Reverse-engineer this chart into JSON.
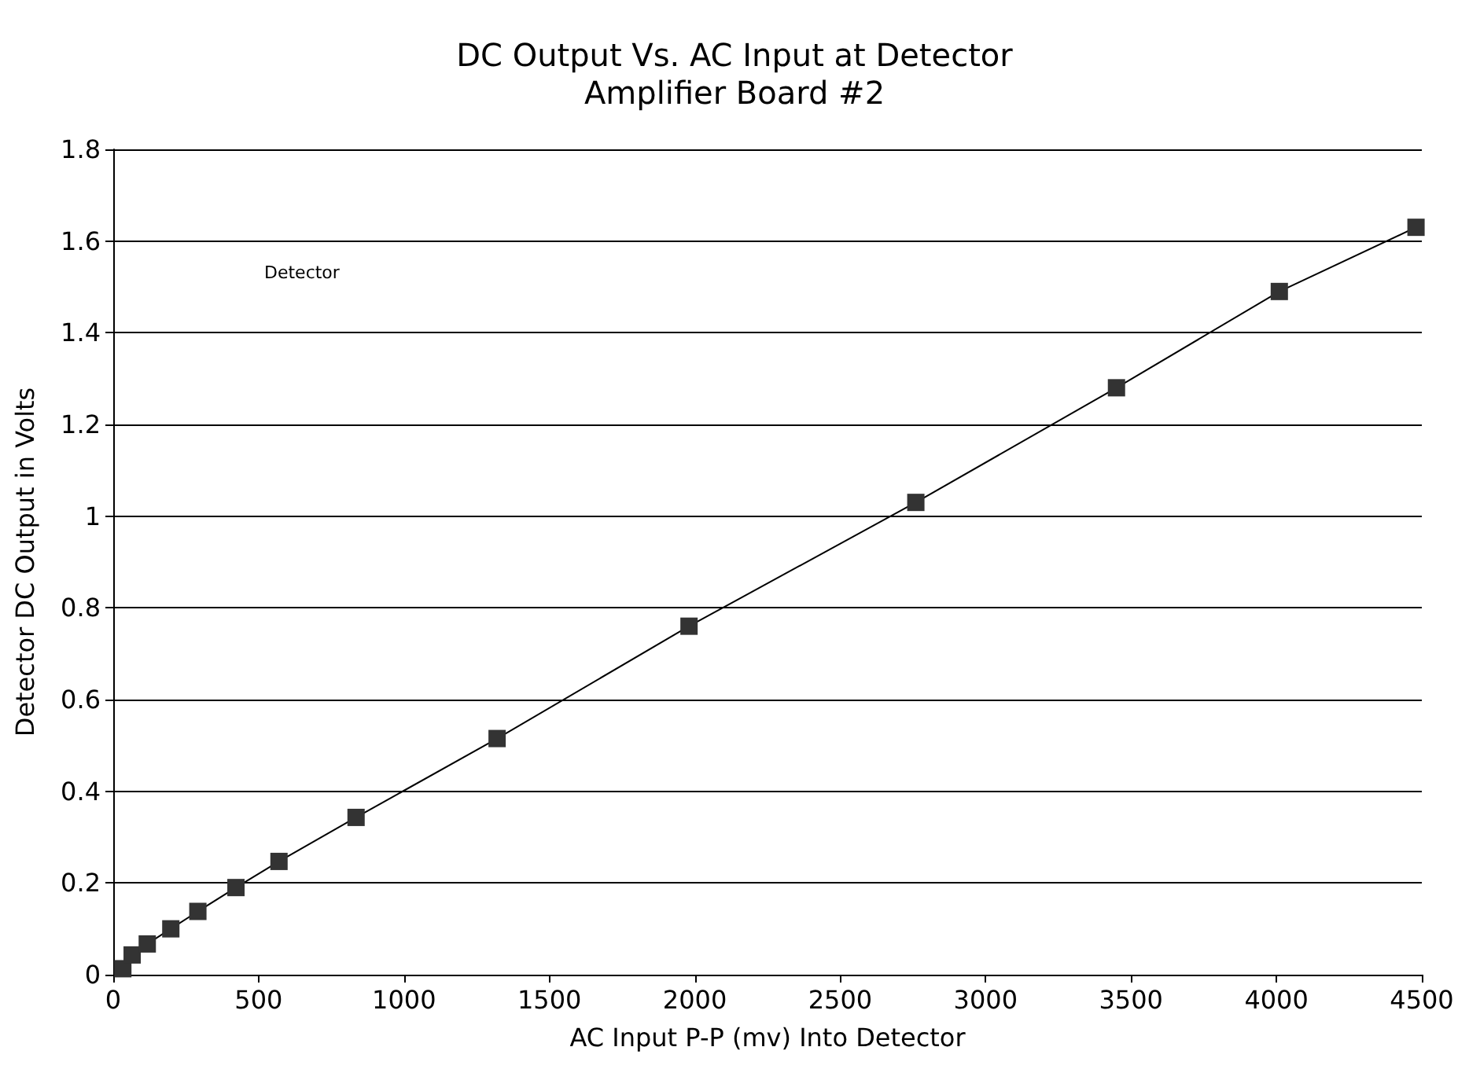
{
  "chart_data": {
    "type": "line",
    "title": "DC Output Vs. AC Input at Detector\nAmplifier Board #2",
    "xlabel": "AC Input P-P (mv) Into Detector",
    "ylabel": "Detector DC Output in Volts",
    "annotations": [
      "Detector"
    ],
    "x": [
      33,
      65,
      117,
      198,
      291,
      422,
      570,
      835,
      1320,
      1980,
      2760,
      3450,
      4010,
      4480
    ],
    "series": [
      {
        "color": "#333333",
        "values": [
          0.013,
          0.043,
          0.067,
          0.1,
          0.138,
          0.19,
          0.247,
          0.343,
          0.515,
          0.76,
          1.03,
          1.28,
          1.49,
          1.63
        ]
      }
    ],
    "xlim": [
      0,
      4500
    ],
    "xticks": [
      0,
      500,
      1000,
      1500,
      2000,
      2500,
      3000,
      3500,
      4000,
      4500
    ],
    "ylim": [
      0,
      1.8
    ],
    "yticks": [
      0,
      0.2,
      0.4,
      0.6,
      0.8,
      1,
      1.2,
      1.4,
      1.6,
      1.8
    ],
    "grid": "y",
    "marker": "square",
    "line_style": "solid"
  }
}
